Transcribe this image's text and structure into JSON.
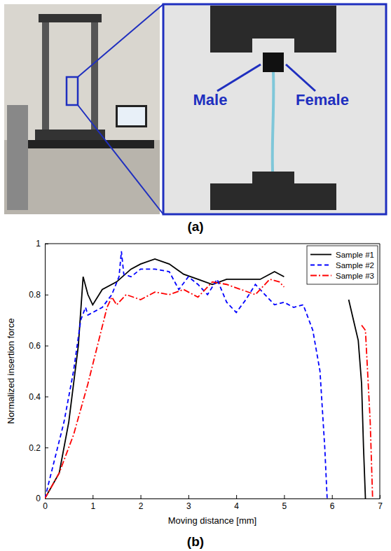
{
  "chart_data": {
    "type": "line",
    "x_label": "Moving distance [mm]",
    "y_label": "Normalized insertion force",
    "xlim": [
      0,
      7
    ],
    "xticks": [
      0,
      1,
      2,
      3,
      4,
      5,
      6,
      7
    ],
    "ylim": [
      0,
      1
    ],
    "yticks": [
      0,
      0.2,
      0.4,
      0.6,
      0.8,
      1
    ],
    "grid": false,
    "legend": "upper right",
    "series": [
      {
        "name": "Sample #1",
        "color": "#000000",
        "line_style": "solid",
        "x": [
          0,
          0.3,
          0.5,
          0.7,
          0.8,
          0.9,
          1.0,
          1.2,
          1.5,
          1.8,
          2.0,
          2.3,
          2.6,
          2.9,
          3.2,
          3.5,
          3.8,
          4.2,
          4.5,
          4.8,
          5.0,
          5.02,
          6.35,
          6.45,
          6.55,
          6.62,
          6.66,
          6.7
        ],
        "values": [
          0,
          0.1,
          0.3,
          0.6,
          0.87,
          0.8,
          0.76,
          0.82,
          0.85,
          0.9,
          0.92,
          0.94,
          0.92,
          0.88,
          0.86,
          0.84,
          0.86,
          0.86,
          0.86,
          0.89,
          0.87,
          null,
          0.78,
          0.7,
          0.62,
          0.45,
          0.2,
          0
        ]
      },
      {
        "name": "Sample #2",
        "color": "#0000ff",
        "line_style": "dashed",
        "x": [
          0,
          0.2,
          0.4,
          0.6,
          0.75,
          0.85,
          0.9,
          1.0,
          1.2,
          1.4,
          1.55,
          1.6,
          1.65,
          1.8,
          2.0,
          2.3,
          2.6,
          2.8,
          3.0,
          3.2,
          3.4,
          3.6,
          3.8,
          4.0,
          4.2,
          4.4,
          4.6,
          4.8,
          5.0,
          5.2,
          5.4,
          5.6,
          5.75,
          5.85,
          5.9
        ],
        "values": [
          0,
          0.15,
          0.3,
          0.5,
          0.7,
          0.75,
          0.72,
          0.73,
          0.75,
          0.8,
          0.87,
          0.97,
          0.88,
          0.87,
          0.9,
          0.9,
          0.89,
          0.82,
          0.87,
          0.84,
          0.8,
          0.86,
          0.77,
          0.73,
          0.78,
          0.84,
          0.8,
          0.76,
          0.77,
          0.75,
          0.76,
          0.66,
          0.5,
          0.2,
          0
        ]
      },
      {
        "name": "Sample #3",
        "color": "#ff0000",
        "line_style": "dashdot",
        "x": [
          0,
          0.3,
          0.6,
          0.9,
          1.1,
          1.3,
          1.4,
          1.5,
          1.7,
          2.0,
          2.3,
          2.6,
          2.9,
          3.2,
          3.5,
          3.8,
          4.1,
          4.4,
          4.7,
          4.9,
          5.0,
          5.02,
          6.62,
          6.7,
          6.8,
          6.85
        ],
        "values": [
          0,
          0.1,
          0.25,
          0.45,
          0.6,
          0.75,
          0.79,
          0.76,
          0.8,
          0.78,
          0.81,
          0.8,
          0.82,
          0.79,
          0.85,
          0.84,
          0.82,
          0.8,
          0.86,
          0.85,
          0.83,
          null,
          0.68,
          0.66,
          0.3,
          0
        ]
      }
    ]
  },
  "panels": {
    "a": {
      "caption": "(a)",
      "labels": [
        "Male",
        "Female"
      ]
    },
    "b": {
      "caption": "(b)"
    }
  }
}
